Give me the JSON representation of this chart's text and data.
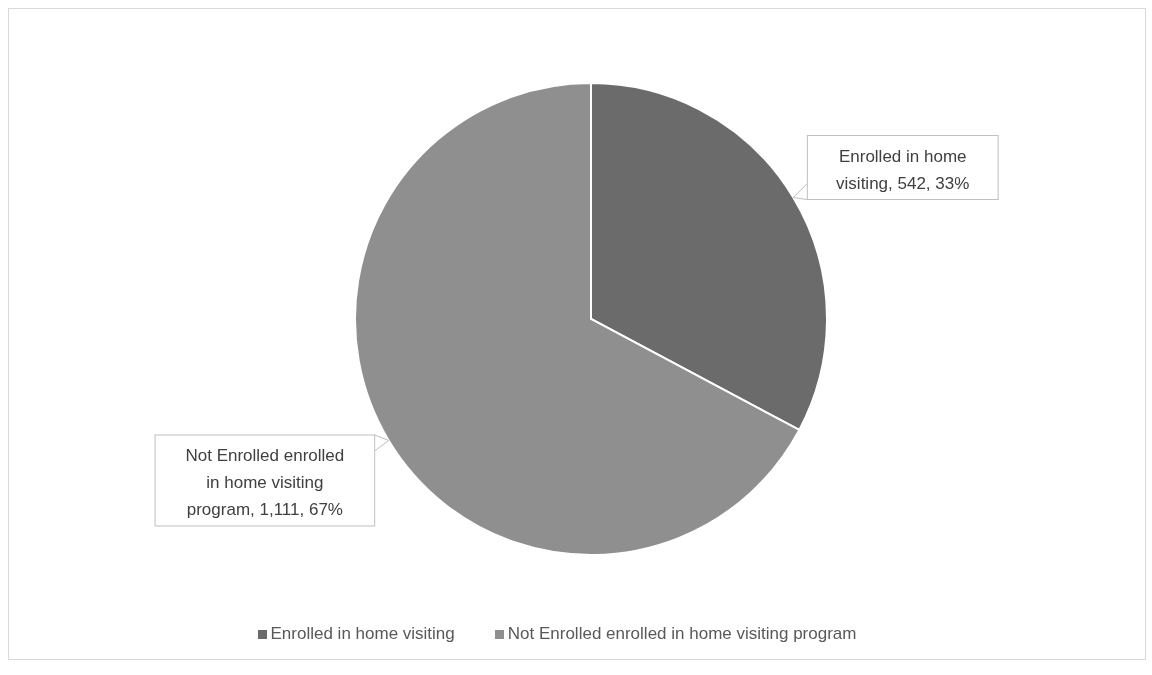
{
  "chart_data": {
    "type": "pie",
    "categories": [
      "Enrolled in home visiting",
      "Not Enrolled enrolled in home visiting program"
    ],
    "values": [
      542,
      1111
    ],
    "colors": [
      "#6b6b6b",
      "#8f8f8f"
    ],
    "value_labels": [
      "Enrolled in home visiting, 542, 33%",
      "Not Enrolled enrolled in home visiting program, 1,111, 67%"
    ],
    "legend": "bottom"
  }
}
